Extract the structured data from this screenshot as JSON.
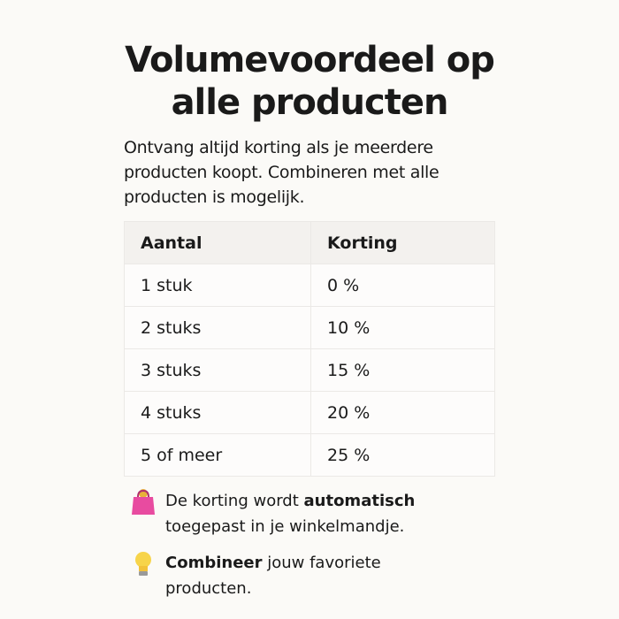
{
  "header": {
    "title": "Volumevoordeel op alle producten"
  },
  "intro": "Ontvang altijd korting als je meerdere producten koopt. Combineren met alle producten is mogelijk.",
  "table": {
    "columns": [
      "Aantal",
      "Korting"
    ],
    "rows": [
      [
        "1 stuk",
        "0 %"
      ],
      [
        "2 stuks",
        "10 %"
      ],
      [
        "3 stuks",
        "15 %"
      ],
      [
        "4 stuks",
        "20 %"
      ],
      [
        "5 of meer",
        "25 %"
      ]
    ]
  },
  "notes": [
    {
      "parts": [
        {
          "text": "De korting wordt ",
          "bold": false
        },
        {
          "text": "automatisch",
          "bold": true
        },
        {
          "text": " toegepast in je winkelmandje.",
          "bold": false
        }
      ]
    },
    {
      "parts": [
        {
          "text": "Combineer",
          "bold": true
        },
        {
          "text": " jouw favoriete producten.",
          "bold": false
        }
      ]
    }
  ]
}
